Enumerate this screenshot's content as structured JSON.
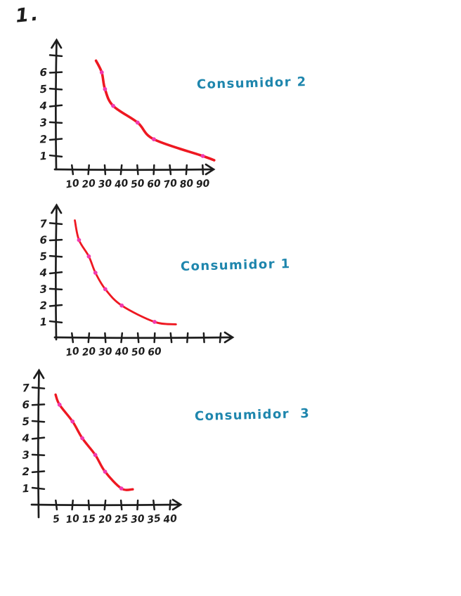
{
  "page": {
    "exercise_number": "1.",
    "background": "#ffffff"
  },
  "colors": {
    "ink": "#1d1d1d",
    "curve_red": "#ee1821",
    "point_magenta": "#f23ab0",
    "title_teal": "#1e86ad"
  },
  "chart_data": [
    {
      "type": "line",
      "title": "Consumidor 2",
      "xlabel": "",
      "ylabel": "",
      "grid": false,
      "xlim": [
        0,
        100
      ],
      "ylim": [
        0,
        7.5
      ],
      "x_ticks": [
        10,
        20,
        30,
        40,
        50,
        60,
        70,
        80,
        90
      ],
      "x_tick_labels": [
        "10",
        "20",
        "30",
        "40",
        "50",
        "60",
        "70",
        "80",
        "90"
      ],
      "y_ticks": [
        1,
        2,
        3,
        4,
        5,
        6,
        7
      ],
      "y_tick_labels": [
        "1",
        "2",
        "3",
        "4",
        "5",
        "6",
        ""
      ],
      "points": [
        [
          28,
          6
        ],
        [
          30,
          5
        ],
        [
          35,
          4
        ],
        [
          50,
          3
        ],
        [
          60,
          2
        ],
        [
          90,
          1
        ]
      ],
      "curve": [
        [
          24.5,
          6.7
        ],
        [
          28,
          6
        ],
        [
          30,
          5
        ],
        [
          35,
          4
        ],
        [
          50,
          3
        ],
        [
          60,
          2
        ],
        [
          90,
          1
        ],
        [
          97,
          0.75
        ]
      ]
    },
    {
      "type": "line",
      "title": "Consumidor 1",
      "xlabel": "",
      "ylabel": "",
      "grid": false,
      "xlim": [
        0,
        108
      ],
      "ylim": [
        0,
        7.8
      ],
      "x_ticks": [
        10,
        20,
        30,
        40,
        50,
        60,
        70,
        80,
        90,
        100
      ],
      "x_tick_labels": [
        "10",
        "20",
        "30",
        "40",
        "50",
        "60",
        "",
        "",
        "",
        ""
      ],
      "y_ticks": [
        1,
        2,
        3,
        4,
        5,
        6,
        7
      ],
      "y_tick_labels": [
        "1",
        "2",
        "3",
        "4",
        "5",
        "6",
        "7"
      ],
      "points": [
        [
          14,
          6
        ],
        [
          20,
          5
        ],
        [
          24,
          4
        ],
        [
          30,
          3
        ],
        [
          40,
          2
        ],
        [
          60,
          1
        ]
      ],
      "curve": [
        [
          11.5,
          7.2
        ],
        [
          14,
          6
        ],
        [
          20,
          5
        ],
        [
          24,
          4
        ],
        [
          30,
          3
        ],
        [
          40,
          2
        ],
        [
          60,
          1
        ],
        [
          73,
          0.85
        ]
      ]
    },
    {
      "type": "line",
      "title": "Consumidor  3",
      "xlabel": "",
      "ylabel": "",
      "grid": false,
      "xlim": [
        0,
        44
      ],
      "ylim": [
        0,
        7.8
      ],
      "x_ticks": [
        5,
        10,
        15,
        20,
        25,
        30,
        35,
        40
      ],
      "x_tick_labels": [
        "5",
        "10",
        "15",
        "20",
        "25",
        "30",
        "35",
        "40"
      ],
      "y_ticks": [
        1,
        2,
        3,
        4,
        5,
        6,
        7
      ],
      "y_tick_labels": [
        "1",
        "2",
        "3",
        "4",
        "5",
        "6",
        "7"
      ],
      "points": [
        [
          6,
          6
        ],
        [
          10,
          5
        ],
        [
          13,
          4
        ],
        [
          17,
          3
        ],
        [
          20,
          2
        ],
        [
          25,
          1
        ]
      ],
      "curve": [
        [
          4.8,
          6.6
        ],
        [
          6,
          6
        ],
        [
          10,
          5
        ],
        [
          13,
          4
        ],
        [
          17,
          3
        ],
        [
          20,
          2
        ],
        [
          25,
          1
        ],
        [
          28.5,
          0.95
        ]
      ]
    }
  ]
}
